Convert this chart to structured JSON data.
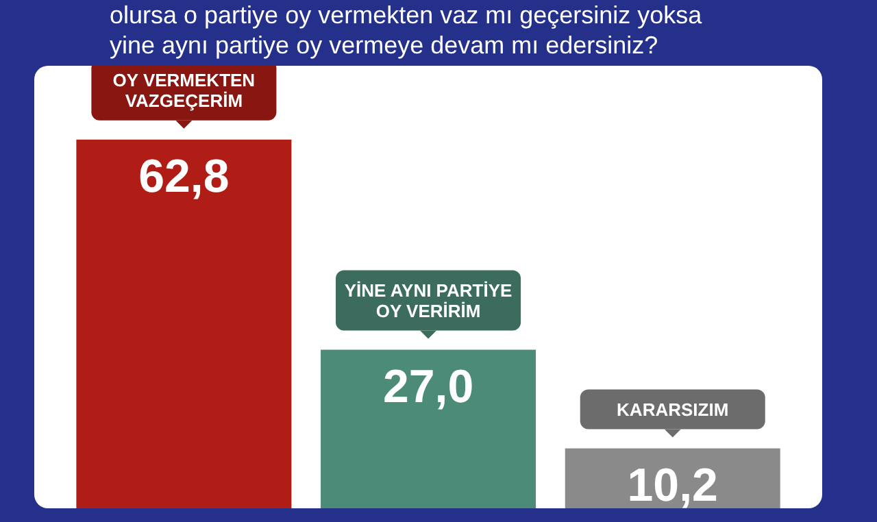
{
  "chart_data": {
    "type": "bar",
    "title": "olursa o partiye oy vermekten vaz mı geçersiniz yoksa\nyine aynı partiye oy vermeye devam mı edersiniz?",
    "categories": [
      "OY VERMEKTEN VAZGEÇERİM",
      "YİNE AYNI PARTİYE OY VERİRİM",
      "KARARSIZIM"
    ],
    "values": [
      62.8,
      27.0,
      10.2
    ],
    "colors": [
      "#b01d16",
      "#4b8b78",
      "#8a8a8a"
    ],
    "value_labels": [
      "62,8",
      "27,0",
      "10,2"
    ]
  }
}
